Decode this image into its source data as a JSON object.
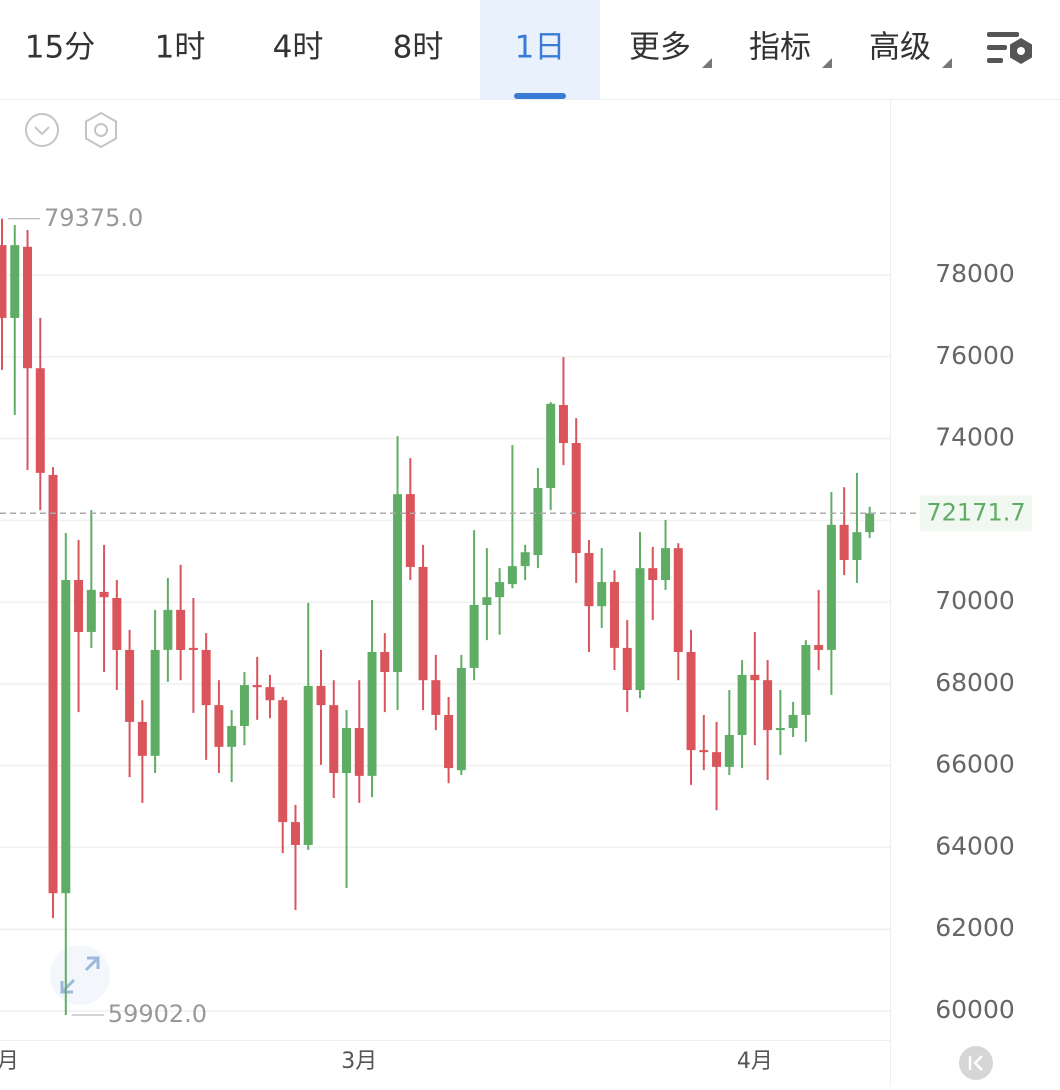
{
  "toolbar": {
    "tabs": [
      "15分",
      "1时",
      "4时",
      "8时",
      "1日",
      "更多",
      "指标",
      "高级"
    ],
    "selected": 4
  },
  "chart_data": {
    "type": "candlestick",
    "categories": [
      "月",
      null,
      null,
      null,
      null,
      null,
      null,
      null,
      null,
      null,
      null,
      null,
      null,
      null,
      null,
      null,
      null,
      null,
      null,
      null,
      null,
      null,
      null,
      null,
      null,
      null,
      null,
      null,
      "3月",
      null,
      null,
      null,
      null,
      null,
      null,
      null,
      null,
      null,
      null,
      null,
      null,
      null,
      null,
      null,
      null,
      null,
      null,
      null,
      null,
      null,
      null,
      null,
      null,
      null,
      null,
      null,
      null,
      null,
      null,
      "4月",
      null,
      null,
      null,
      null,
      null,
      null,
      null,
      null,
      null
    ],
    "open": [
      78730,
      76950,
      78690,
      75720,
      73110,
      62880,
      70540,
      69270,
      70250,
      70100,
      68830,
      67070,
      66240,
      68830,
      69810,
      68880,
      68830,
      67480,
      66460,
      66970,
      67970,
      67920,
      67600,
      64620,
      64060,
      67950,
      67480,
      65820,
      66920,
      65750,
      68780,
      68290,
      72640,
      70860,
      68090,
      67240,
      65890,
      68390,
      69930,
      70120,
      70440,
      70880,
      71150,
      72790,
      74820,
      73890,
      71200,
      69900,
      70490,
      68880,
      67850,
      70830,
      70540,
      71320,
      68780,
      66380,
      66330,
      65970,
      66750,
      68220,
      68090,
      66870,
      66920,
      67240,
      68950,
      68830,
      71890,
      71030,
      71710
    ],
    "high": [
      79375,
      79220,
      79100,
      76950,
      73300,
      71690,
      71520,
      72250,
      71400,
      70540,
      69320,
      67600,
      69810,
      70590,
      70910,
      70100,
      69240,
      68090,
      67360,
      68290,
      68660,
      68220,
      67680,
      65040,
      69980,
      68830,
      68090,
      67360,
      68090,
      70050,
      69240,
      74060,
      73520,
      71400,
      68710,
      67680,
      68710,
      71760,
      71320,
      70830,
      73840,
      71400,
      73280,
      74890,
      75990,
      74500,
      71520,
      71320,
      70780,
      69560,
      71710,
      71350,
      72010,
      71440,
      69320,
      67240,
      67070,
      67850,
      68580,
      69270,
      68580,
      67850,
      67560,
      69070,
      70300,
      72690,
      72810,
      73160,
      72330
    ],
    "low": [
      75680,
      74580,
      73230,
      72250,
      62270,
      59902,
      67310,
      68880,
      68290,
      67850,
      65720,
      65090,
      65820,
      68050,
      68090,
      67290,
      66140,
      65820,
      65600,
      66500,
      67120,
      67160,
      63860,
      62470,
      63940,
      66020,
      65210,
      63010,
      65090,
      65230,
      67310,
      67360,
      70540,
      67360,
      66870,
      65570,
      65770,
      68090,
      69070,
      69200,
      70340,
      70540,
      70830,
      72250,
      73350,
      70470,
      68780,
      69370,
      68340,
      67310,
      67650,
      69560,
      70300,
      68090,
      65530,
      65890,
      64910,
      65770,
      65940,
      66500,
      65650,
      66260,
      66700,
      66580,
      68340,
      67730,
      70660,
      70470,
      71570
    ],
    "close": [
      76950,
      78730,
      75720,
      73160,
      62880,
      70540,
      69270,
      70300,
      70120,
      68830,
      67070,
      66240,
      68830,
      69810,
      68830,
      68830,
      67480,
      66460,
      66970,
      67970,
      67920,
      67600,
      64620,
      64060,
      67950,
      67480,
      65820,
      66920,
      65750,
      68780,
      68290,
      72640,
      70860,
      68090,
      67240,
      65940,
      68390,
      69930,
      70120,
      70490,
      70880,
      71220,
      72790,
      74850,
      73890,
      71200,
      69900,
      70490,
      68880,
      67850,
      70830,
      70540,
      71320,
      68780,
      66380,
      66330,
      65970,
      66750,
      68220,
      68090,
      66870,
      66920,
      67240,
      68950,
      68830,
      71890,
      71030,
      71710,
      72171.7
    ],
    "up_color": "#5fad65",
    "down_color": "#d9545b",
    "ylim": [
      59290,
      82280
    ],
    "yticks": [
      60000,
      62000,
      64000,
      66000,
      68000,
      70000,
      72000,
      74000,
      76000,
      78000
    ],
    "grid": true,
    "last_price": 72171.7,
    "max_marker": {
      "value": 79375,
      "label": "79375.0"
    },
    "min_marker": {
      "value": 59902,
      "label": "59902.0"
    }
  }
}
